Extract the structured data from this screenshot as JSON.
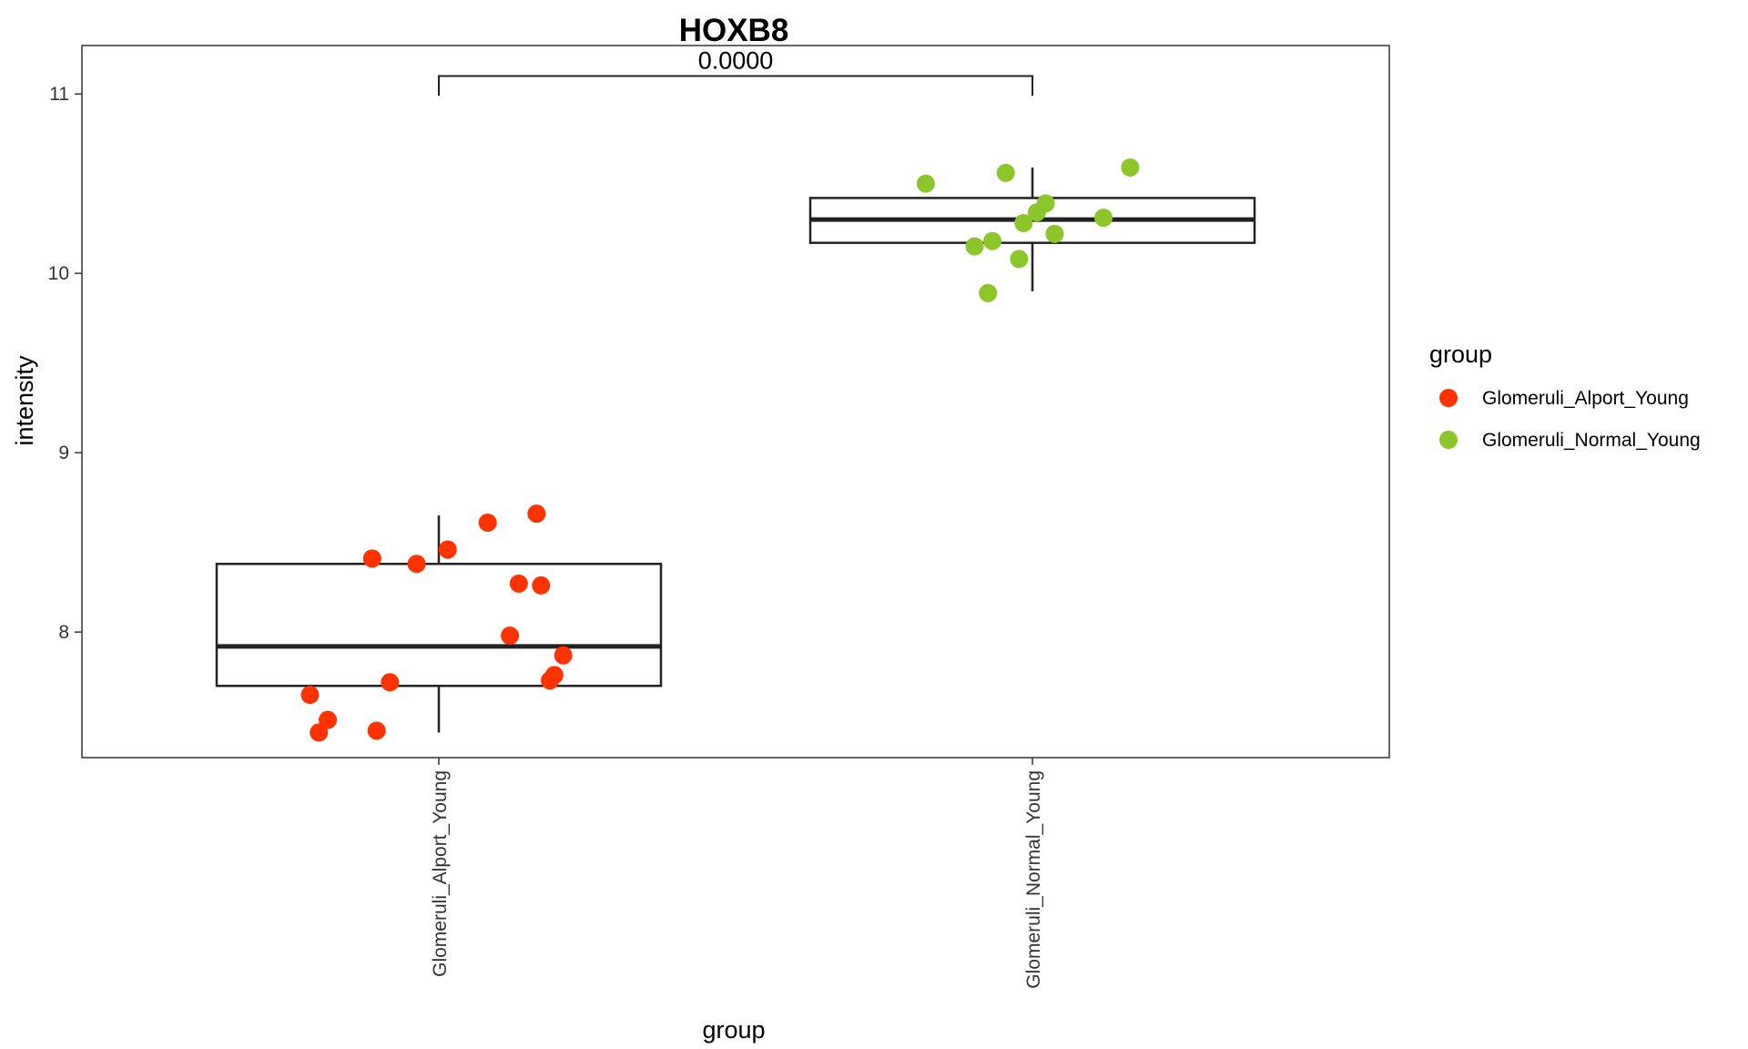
{
  "chart_data": {
    "type": "box",
    "title": "HOXB8",
    "xlabel": "group",
    "ylabel": "intensity",
    "categories": [
      "Glomeruli_Alport_Young",
      "Glomeruli_Normal_Young"
    ],
    "ylim": [
      7.3,
      11.27
    ],
    "yticks": [
      8,
      9,
      10,
      11
    ],
    "ytick_labels": [
      "8",
      "9",
      "10",
      "11"
    ],
    "grid": false,
    "legend": {
      "title": "group",
      "position": "right",
      "entries": [
        "Glomeruli_Alport_Young",
        "Glomeruli_Normal_Young"
      ]
    },
    "series": [
      {
        "name": "Glomeruli_Alport_Young",
        "color": "#ff3300",
        "box": {
          "q1": 7.7,
          "median": 7.92,
          "q3": 8.38,
          "whisker_low": 7.44,
          "whisker_high": 8.65
        },
        "points": [
          {
            "x": -0.29,
            "y": 7.65
          },
          {
            "x": -0.27,
            "y": 7.44
          },
          {
            "x": -0.25,
            "y": 7.51
          },
          {
            "x": -0.15,
            "y": 8.41
          },
          {
            "x": -0.14,
            "y": 7.45
          },
          {
            "x": -0.11,
            "y": 7.72
          },
          {
            "x": -0.05,
            "y": 8.38
          },
          {
            "x": 0.02,
            "y": 8.46
          },
          {
            "x": 0.11,
            "y": 8.61
          },
          {
            "x": 0.16,
            "y": 7.98
          },
          {
            "x": 0.18,
            "y": 8.27
          },
          {
            "x": 0.22,
            "y": 8.66
          },
          {
            "x": 0.23,
            "y": 8.26
          },
          {
            "x": 0.25,
            "y": 7.73
          },
          {
            "x": 0.26,
            "y": 7.76
          },
          {
            "x": 0.28,
            "y": 7.87
          }
        ]
      },
      {
        "name": "Glomeruli_Normal_Young",
        "color": "#8dc62b",
        "box": {
          "q1": 10.17,
          "median": 10.3,
          "q3": 10.42,
          "whisker_low": 9.9,
          "whisker_high": 10.59
        },
        "points": [
          {
            "x": -0.24,
            "y": 10.5
          },
          {
            "x": -0.13,
            "y": 10.15
          },
          {
            "x": -0.1,
            "y": 9.89
          },
          {
            "x": -0.09,
            "y": 10.18
          },
          {
            "x": -0.06,
            "y": 10.56
          },
          {
            "x": -0.03,
            "y": 10.08
          },
          {
            "x": -0.02,
            "y": 10.28
          },
          {
            "x": 0.01,
            "y": 10.34
          },
          {
            "x": 0.03,
            "y": 10.39
          },
          {
            "x": 0.05,
            "y": 10.22
          },
          {
            "x": 0.16,
            "y": 10.31
          },
          {
            "x": 0.22,
            "y": 10.59
          }
        ]
      }
    ],
    "annotations": [
      {
        "type": "bracket",
        "from": "Glomeruli_Alport_Young",
        "to": "Glomeruli_Normal_Young",
        "y": 11.1,
        "y_end": 10.99,
        "label": "0.0000"
      }
    ]
  }
}
